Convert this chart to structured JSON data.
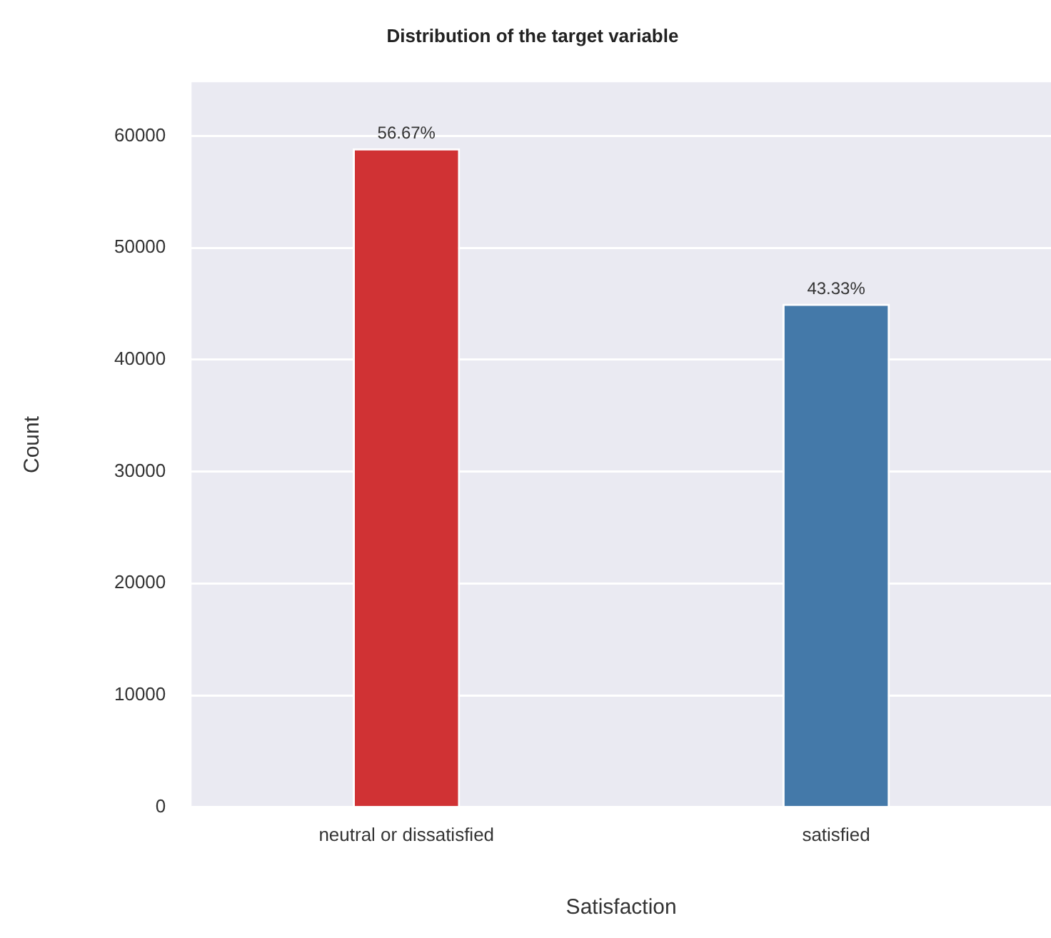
{
  "chart_data": {
    "type": "bar",
    "title": "Distribution of the target variable",
    "xlabel": "Satisfaction",
    "ylabel": "Count",
    "categories": [
      "neutral or dissatisfied",
      "satisfied"
    ],
    "values": [
      58900,
      45000
    ],
    "colors": [
      "#d03234",
      "#4479a9"
    ],
    "annotations": [
      {
        "text": "56.67%",
        "x": "neutral or dissatisfied",
        "y": 58900
      },
      {
        "text": "43.33%",
        "x": "satisfied",
        "y": 45000
      }
    ],
    "ylim": [
      0,
      64800
    ],
    "yticks": [
      0,
      10000,
      20000,
      30000,
      40000,
      50000,
      60000
    ],
    "grid": "y",
    "legend": false
  }
}
